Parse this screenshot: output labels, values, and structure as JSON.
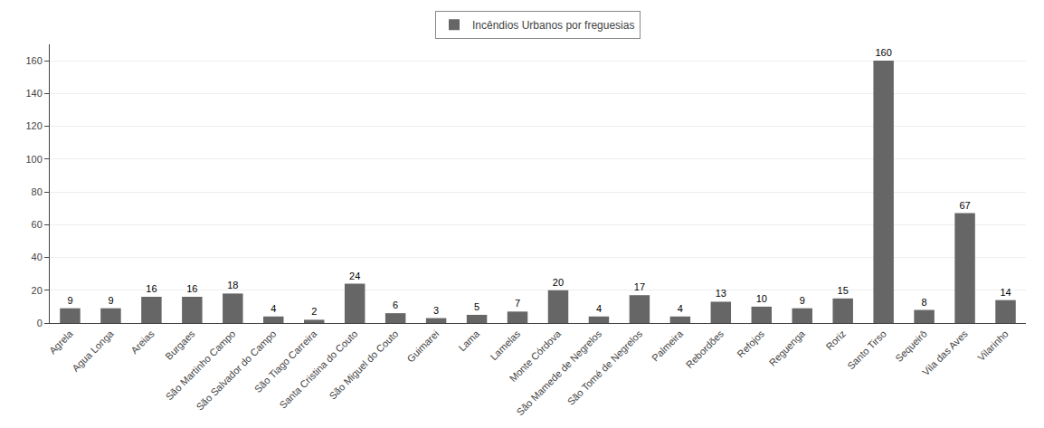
{
  "chart_data": {
    "type": "bar",
    "categories": [
      "Agrela",
      "Agua Longa",
      "Areias",
      "Burgaes",
      "São Martinho Campo",
      "São Salvador do Campo",
      "São Tiago Carreira",
      "Santa Cristina do Couto",
      "São Miguel do Couto",
      "Guimarei",
      "Lama",
      "Lamelas",
      "Monte Córdova",
      "São Mamede de Negrelos",
      "São Tomé de Negrelos",
      "Palmeira",
      "Rebordões",
      "Refojos",
      "Reguenga",
      "Roriz",
      "Santo Tirso",
      "Sequeirô",
      "Vila das Aves",
      "Vilarinho"
    ],
    "series": [
      {
        "name": "Incêndios Urbanos por freguesias",
        "color": "#666666",
        "values": [
          9,
          9,
          16,
          16,
          18,
          4,
          2,
          24,
          6,
          3,
          5,
          7,
          20,
          4,
          17,
          4,
          13,
          10,
          9,
          15,
          160,
          8,
          67,
          14
        ]
      }
    ],
    "ylim": [
      0,
      170
    ],
    "yticks": [
      0,
      20,
      40,
      60,
      80,
      100,
      120,
      140,
      160
    ],
    "grid": true,
    "legend": "top",
    "data_labels": true
  }
}
